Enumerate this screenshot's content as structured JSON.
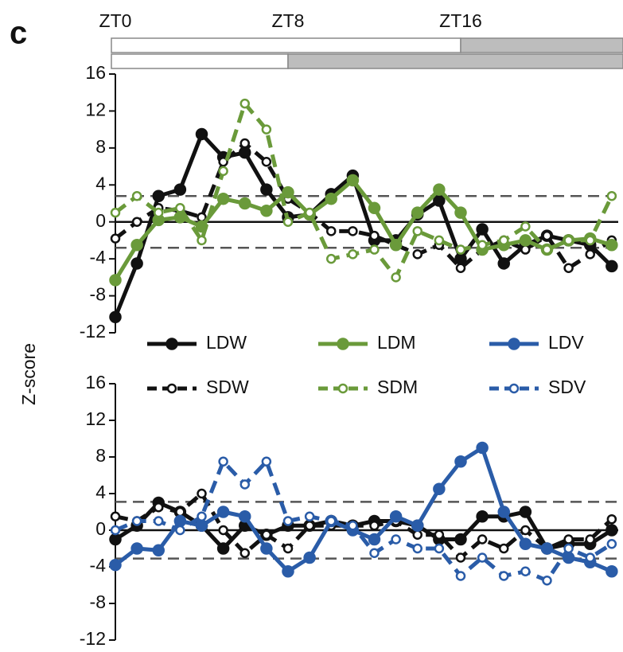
{
  "panel_label": "c",
  "y_label": "Z-score",
  "chart_data": [
    {
      "type": "line",
      "x": [
        0,
        1,
        2,
        3,
        4,
        5,
        6,
        7,
        8,
        9,
        10,
        11,
        12,
        13,
        14,
        15,
        16,
        17,
        18,
        19,
        20,
        21,
        22,
        23
      ],
      "xlim": [
        0,
        23.3
      ],
      "xticks": [
        {
          "value": 0,
          "label": "ZT0"
        },
        {
          "value": 8,
          "label": "ZT8"
        },
        {
          "value": 16,
          "label": "ZT16"
        }
      ],
      "bars": [
        {
          "dark_start": 16
        },
        {
          "dark_start": 8
        }
      ],
      "ylim": [
        -12,
        16
      ],
      "yticks": [
        16,
        12,
        8,
        4,
        0,
        -4,
        -8,
        -12
      ],
      "hlines": [
        2.8,
        -2.8
      ],
      "series": [
        {
          "name": "LDW",
          "color": "#111111",
          "dashed": false,
          "marker": "filled",
          "values": [
            -10.3,
            -4.5,
            2.8,
            3.5,
            9.5,
            7.0,
            7.5,
            3.5,
            0.5,
            0.8,
            3.0,
            5.0,
            -2.0,
            -2.0,
            0.8,
            2.3,
            -4.0,
            -0.8,
            -4.5,
            -2.5,
            -1.5,
            -2.0,
            -2.5,
            -4.8
          ]
        },
        {
          "name": "SDW",
          "color": "#111111",
          "dashed": true,
          "marker": "open",
          "values": [
            -1.8,
            0.0,
            1.5,
            1.2,
            0.5,
            6.5,
            8.5,
            6.5,
            2.5,
            1.0,
            -1.0,
            -1.0,
            -1.5,
            -2.5,
            -3.5,
            -2.5,
            -5.0,
            -3.0,
            -2.0,
            -3.0,
            -1.5,
            -5.0,
            -3.5,
            -2.0
          ]
        },
        {
          "name": "LDM",
          "color": "#6a9a3a",
          "dashed": false,
          "marker": "filled",
          "values": [
            -6.3,
            -2.5,
            0.2,
            0.5,
            -0.5,
            2.5,
            2.0,
            1.2,
            3.2,
            0.8,
            2.5,
            4.5,
            1.5,
            -2.5,
            1.0,
            3.5,
            1.0,
            -3.0,
            -2.5,
            -2.0,
            -3.0,
            -2.0,
            -1.8,
            -2.5
          ]
        },
        {
          "name": "SDM",
          "color": "#6a9a3a",
          "dashed": true,
          "marker": "open",
          "values": [
            1.0,
            2.8,
            1.0,
            1.5,
            -2.0,
            5.5,
            12.8,
            10.0,
            0.0,
            1.0,
            -4.0,
            -3.5,
            -3.0,
            -6.0,
            -1.0,
            -2.0,
            -3.0,
            -2.5,
            -2.0,
            -0.5,
            -3.0,
            -2.0,
            -2.0,
            2.8
          ]
        }
      ]
    },
    {
      "type": "line",
      "x": [
        0,
        1,
        2,
        3,
        4,
        5,
        6,
        7,
        8,
        9,
        10,
        11,
        12,
        13,
        14,
        15,
        16,
        17,
        18,
        19,
        20,
        21,
        22,
        23
      ],
      "xlim": [
        0,
        23.3
      ],
      "ylim": [
        -12,
        16
      ],
      "yticks": [
        16,
        12,
        8,
        4,
        0,
        -4,
        -8,
        -12
      ],
      "hlines": [
        3.1,
        -3.1
      ],
      "series": [
        {
          "name": "LDW",
          "color": "#111111",
          "dashed": false,
          "marker": "filled",
          "values": [
            -1.0,
            0.5,
            3.0,
            2.0,
            0.5,
            -2.0,
            0.5,
            -0.5,
            0.5,
            0.5,
            1.0,
            0.5,
            1.0,
            1.0,
            0.5,
            -1.0,
            -1.0,
            1.5,
            1.5,
            2.0,
            -2.0,
            -1.5,
            -1.5,
            0.0
          ]
        },
        {
          "name": "SDW",
          "color": "#111111",
          "dashed": true,
          "marker": "open",
          "values": [
            1.5,
            1.0,
            2.5,
            2.0,
            4.0,
            0.0,
            -2.5,
            -0.5,
            -2.0,
            0.5,
            0.5,
            0.5,
            0.5,
            1.0,
            -0.5,
            -0.5,
            -3.0,
            -1.0,
            -2.0,
            0.0,
            -2.0,
            -1.0,
            -1.0,
            1.2
          ]
        },
        {
          "name": "LDV",
          "color": "#2a5ca8",
          "dashed": false,
          "marker": "filled",
          "values": [
            -3.8,
            -2.0,
            -2.2,
            1.0,
            0.5,
            2.0,
            1.5,
            -2.0,
            -4.5,
            -3.0,
            1.0,
            0.0,
            -1.0,
            1.5,
            0.5,
            4.5,
            7.5,
            9.0,
            2.0,
            -1.5,
            -2.0,
            -3.0,
            -3.5,
            -4.5
          ]
        },
        {
          "name": "SDV",
          "color": "#2a5ca8",
          "dashed": true,
          "marker": "open",
          "values": [
            0.0,
            1.0,
            1.0,
            0.0,
            1.5,
            7.5,
            5.0,
            7.5,
            1.0,
            1.5,
            1.0,
            0.5,
            -2.5,
            -1.0,
            -2.0,
            -2.0,
            -5.0,
            -3.0,
            -5.0,
            -4.5,
            -5.5,
            -2.0,
            -3.0,
            -1.5
          ]
        }
      ]
    }
  ]
}
